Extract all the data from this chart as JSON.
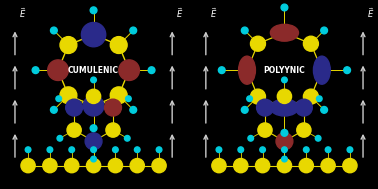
{
  "bg_color": "#000000",
  "yellow": "#e8d800",
  "cyan": "#00ccdd",
  "dark_blue": "#2a2a8a",
  "dark_red": "#8b2a2a",
  "white": "#ffffff",
  "gray": "#aaaaaa",
  "label_left": "CUMULENIC",
  "label_right": "POLYYNIC",
  "e_field_label": "$\\vec{E}$",
  "figsize": [
    3.78,
    1.89
  ],
  "dpi": 100
}
